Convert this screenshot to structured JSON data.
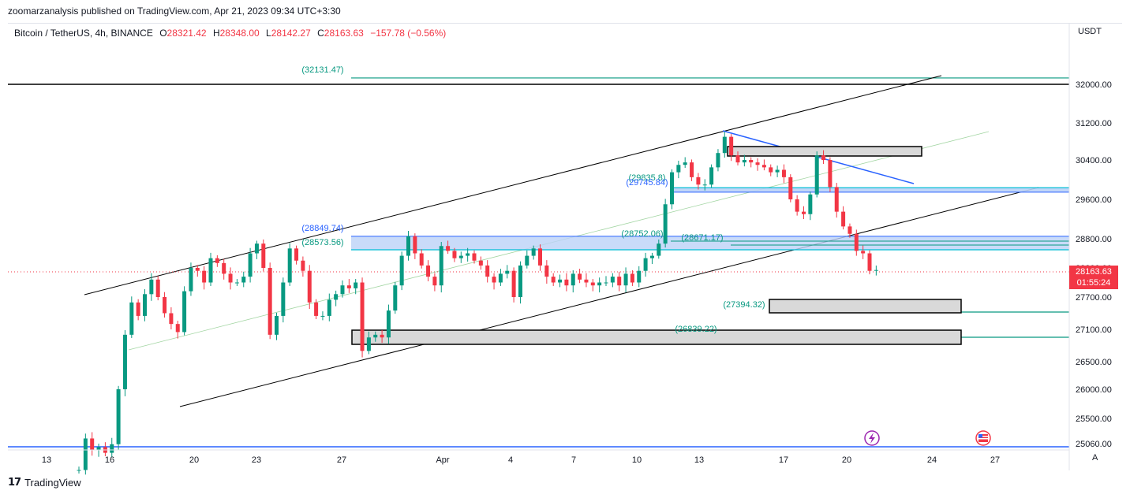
{
  "header": {
    "published": "zoomarzanalysis published on TradingView.com, Apr 21, 2023 09:34 UTC+3:30"
  },
  "legend": {
    "symbol": "Bitcoin / TetherUS, 4h, BINANCE",
    "o_label": "O",
    "o": "28321.42",
    "h_label": "H",
    "h": "28348.00",
    "l_label": "L",
    "l": "28142.27",
    "c_label": "C",
    "c": "28163.63",
    "change": "−157.78 (−0.56%)"
  },
  "currency": "USDT",
  "footer": {
    "brand": "TradingView",
    "logo_mark": "17"
  },
  "price_tag": {
    "price": "28163.63",
    "countdown": "01:55:24"
  },
  "scale_button": "A",
  "colors": {
    "up": "#089981",
    "down": "#f23645",
    "teal_line": "#089981",
    "blue": "#2962ff",
    "cyan": "#00bcd4",
    "zone_fill": "#bbd2f7",
    "gray_fill": "#d9d9d9",
    "price_line": "#f23645"
  },
  "icons": [
    "lightning-icon",
    "us-flag-icon"
  ],
  "chart_data": {
    "type": "candlestick",
    "title": "Bitcoin / TetherUS, 4h, BINANCE",
    "ylim": [
      24950,
      32700
    ],
    "x_ticks": [
      "13",
      "16",
      "20",
      "23",
      "27",
      "Apr",
      "4",
      "7",
      "10",
      "13",
      "17",
      "20",
      "24",
      "27"
    ],
    "y_ticks": [
      "32000.00",
      "31200.00",
      "30400.00",
      "29600.00",
      "28800.00",
      "28200.00",
      "27700.00",
      "27100.00",
      "26500.00",
      "26000.00",
      "25500.00",
      "25060.00"
    ],
    "level_labels": [
      "(32131.47)",
      "(28849.74)",
      "(28573.56)",
      "(29835.8)",
      "(29745.84)",
      "(28752.06)",
      "(28671.17)",
      "(27394.32)",
      "(26839.22)"
    ],
    "last_price": 28163.63,
    "closes": [
      24600,
      25150,
      24950,
      25000,
      24900,
      25050,
      26000,
      27000,
      27600,
      27350,
      27750,
      28000,
      27700,
      27400,
      27200,
      27050,
      27800,
      28200,
      28150,
      27950,
      28400,
      28300,
      28100,
      27950,
      27950,
      28050,
      28500,
      28700,
      28200,
      27000,
      27350,
      27950,
      28600,
      28350,
      28150,
      27600,
      27350,
      27350,
      27650,
      27750,
      27900,
      27850,
      27950,
      26700,
      26950,
      27000,
      26950,
      27450,
      27900,
      28450,
      28850,
      28500,
      28250,
      28050,
      27900,
      28650,
      28550,
      28400,
      28450,
      28500,
      28350,
      28250,
      28050,
      27950,
      28100,
      28150,
      27700,
      28250,
      28450,
      28600,
      28250,
      28050,
      27950,
      28000,
      27900,
      28100,
      28000,
      27950,
      27900,
      27950,
      27950,
      28050,
      27900,
      28100,
      27950,
      28150,
      28400,
      28450,
      28700,
      29500,
      30150,
      30300,
      30350,
      30050,
      29900,
      29900,
      30250,
      30550,
      30900,
      30500,
      30350,
      30400,
      30350,
      30300,
      30250,
      30150,
      30200,
      30050,
      29600,
      29350,
      29300,
      29700,
      30500,
      30400,
      29850,
      29350,
      29050,
      28900,
      28550,
      28500,
      28150,
      28163.63
    ]
  }
}
